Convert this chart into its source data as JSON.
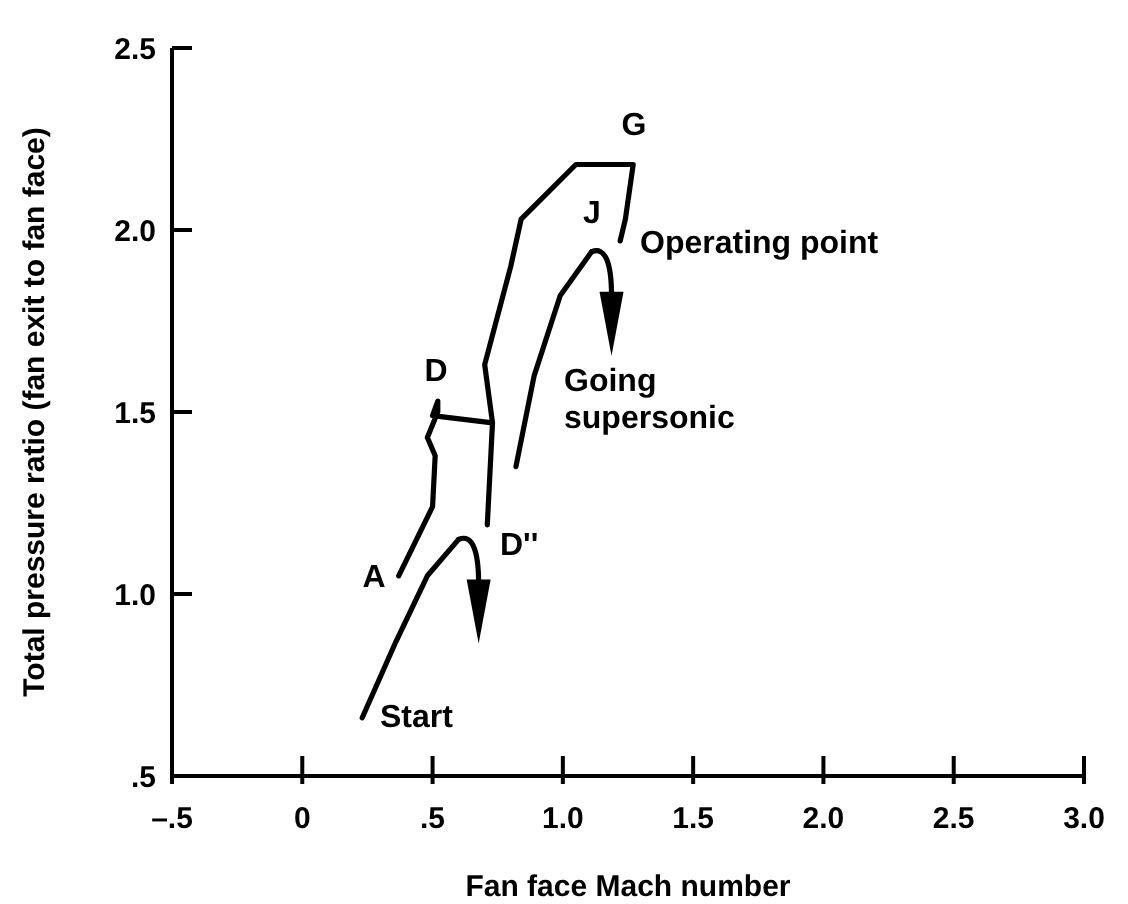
{
  "chart_data": {
    "type": "line",
    "xlabel": "Fan face Mach number",
    "ylabel": "Total pressure ratio (fan exit to fan face)",
    "xlim": [
      -0.5,
      3.0
    ],
    "ylim": [
      0.5,
      2.5
    ],
    "xticks": [
      {
        "value": -0.5,
        "label": "–.5"
      },
      0,
      {
        "value": 0.5,
        "label": ".5"
      },
      {
        "value": 1,
        "label": "1.0"
      },
      {
        "value": 1.5,
        "label": "1.5"
      },
      {
        "value": 2,
        "label": "2.0"
      },
      {
        "value": 2.5,
        "label": "2.5"
      },
      {
        "value": 3,
        "label": "3.0"
      }
    ],
    "yticks": [
      {
        "value": 0.5,
        "label": ".5"
      },
      {
        "value": 1,
        "label": "1.0"
      },
      {
        "value": 1.5,
        "label": "1.5"
      },
      {
        "value": 2,
        "label": "2.0"
      },
      {
        "value": 2.5,
        "label": "2.5"
      }
    ],
    "series": [
      {
        "color": "#000000",
        "x": [
          0.23,
          0.36,
          0.48,
          0.6
        ],
        "values": [
          0.66,
          0.87,
          1.05,
          1.15
        ]
      },
      {
        "color": "#000000",
        "x": [
          0.37,
          0.5,
          0.51,
          0.48,
          0.52,
          0.52,
          0.5,
          0.73
        ],
        "values": [
          1.05,
          1.24,
          1.38,
          1.43,
          1.5,
          1.53,
          1.49,
          1.47
        ]
      },
      {
        "color": "#000000",
        "x": [
          0.71,
          0.73,
          0.7,
          0.8,
          0.84,
          1.05,
          1.27,
          1.24,
          1.22
        ],
        "values": [
          1.19,
          1.47,
          1.63,
          1.9,
          2.03,
          2.18,
          2.18,
          2.03,
          1.97
        ]
      },
      {
        "color": "#000000",
        "x": [
          0.82,
          0.89,
          0.99,
          1.11
        ],
        "values": [
          1.35,
          1.6,
          1.82,
          1.94
        ]
      }
    ],
    "annotations": [
      "Start",
      "A",
      "D",
      "D''",
      "G",
      "J",
      "Operating point",
      "Going\nsupersonic"
    ],
    "grid": false,
    "marker": "none",
    "line_style": "solid"
  }
}
